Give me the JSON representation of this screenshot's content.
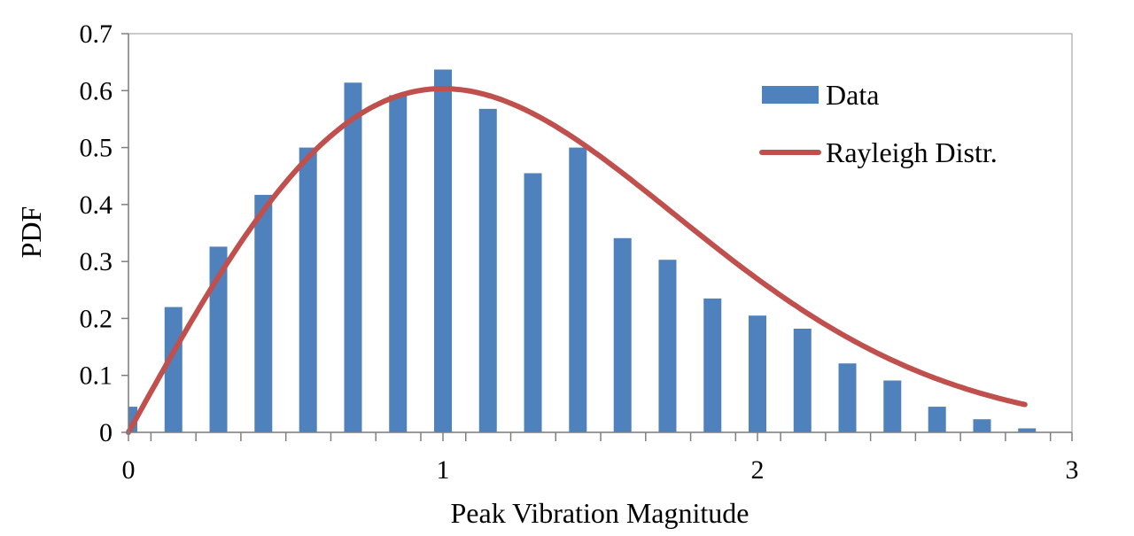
{
  "chart_data": {
    "type": "bar",
    "title": "",
    "xlabel": "Peak Vibration Magnitude",
    "ylabel": "PDF",
    "xlim": [
      0,
      3
    ],
    "ylim": [
      0,
      0.7
    ],
    "x_ticks": [
      "0",
      "1",
      "2",
      "3"
    ],
    "y_ticks": [
      "0",
      "0.1",
      "0.2",
      "0.3",
      "0.4",
      "0.5",
      "0.6",
      "0.7"
    ],
    "grid": false,
    "legend_position": "top-right",
    "series": [
      {
        "name": "Data",
        "kind": "bar",
        "color": "#4F81BD",
        "x": [
          0.0,
          0.143,
          0.286,
          0.429,
          0.571,
          0.714,
          0.857,
          1.0,
          1.143,
          1.286,
          1.429,
          1.571,
          1.714,
          1.857,
          2.0,
          2.143,
          2.286,
          2.429,
          2.571,
          2.714,
          2.857
        ],
        "values": [
          0.045,
          0.22,
          0.326,
          0.417,
          0.5,
          0.614,
          0.592,
          0.637,
          0.568,
          0.455,
          0.5,
          0.341,
          0.303,
          0.235,
          0.205,
          0.182,
          0.121,
          0.091,
          0.045,
          0.023,
          0.007
        ]
      },
      {
        "name": "Rayleigh Distr.",
        "kind": "line",
        "color": "#C0504D",
        "distribution": "rayleigh",
        "sigma": 1.0,
        "scale": 0.995,
        "x_range": [
          0,
          2.85
        ]
      }
    ]
  }
}
